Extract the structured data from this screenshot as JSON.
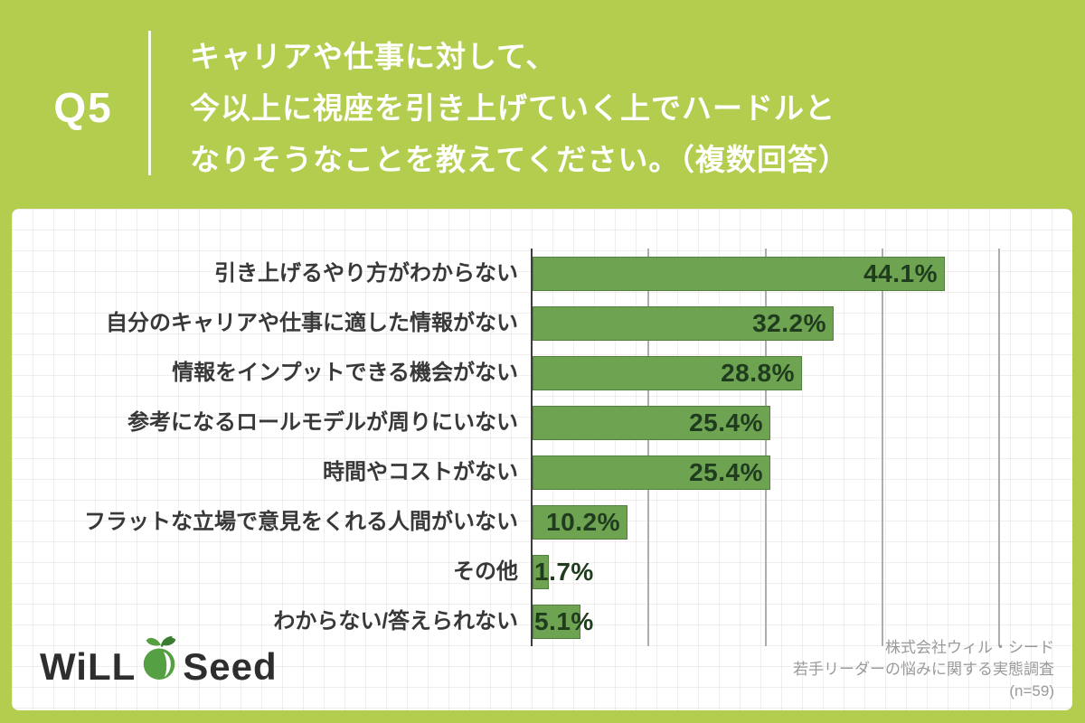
{
  "page": {
    "background_color": "#b3ce4e"
  },
  "header": {
    "question_number": "Q5",
    "question_lines": [
      "キャリアや仕事に対して、",
      "今以上に視座を引き上げていく上でハードルと",
      "なりそうなことを教えてください。（複数回答）"
    ],
    "text_color": "#ffffff"
  },
  "chart_data": {
    "type": "bar",
    "orientation": "horizontal",
    "title": "",
    "xlabel": "",
    "ylabel": "",
    "categories": [
      "引き上げるやり方がわからない",
      "自分のキャリアや仕事に適した情報がない",
      "情報をインプットできる機会がない",
      "参考になるロールモデルが周りにいない",
      "時間やコストがない",
      "フラットな立場で意見をくれる人間がいない",
      "その他",
      "わからない/答えられない"
    ],
    "values": [
      44.1,
      32.2,
      28.8,
      25.4,
      25.4,
      10.2,
      1.7,
      5.1
    ],
    "value_labels": [
      "44.1%",
      "32.2%",
      "28.8%",
      "25.4%",
      "25.4%",
      "10.2%",
      "1.7%",
      "5.1%"
    ],
    "xlim": [
      0,
      55.4
    ],
    "gridlines_percent": [
      12.5,
      25,
      37.5,
      50
    ],
    "grid": true,
    "legend_position": "none",
    "bar_color": "#6ea352",
    "bar_border_color": "#527f3c",
    "value_text_color": "#203c1e",
    "axis_line_color": "#3d3d3d",
    "gridline_color": "#adadad"
  },
  "footer": {
    "logo": {
      "text_left": "WiLL",
      "text_right": "Seed",
      "icon": "apple-sprout-icon",
      "icon_color": "#55a043"
    },
    "source_lines": [
      "株式会社ウィル・シード",
      "若手リーダーの悩みに関する実態調査",
      "(n=59)"
    ]
  }
}
